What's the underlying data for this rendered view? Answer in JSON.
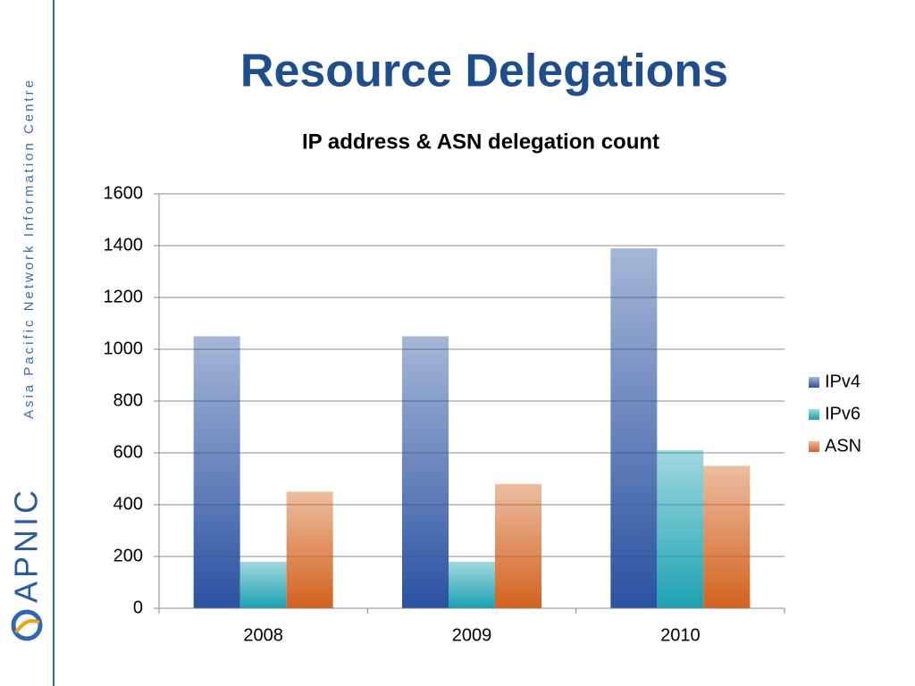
{
  "slide": {
    "title": "Resource Delegations"
  },
  "sidebar": {
    "tagline": "Asia Pacific Network Information Centre",
    "logo_text": "APNIC"
  },
  "chart_data": {
    "type": "bar",
    "title": "IP address & ASN delegation count",
    "categories": [
      "2008",
      "2009",
      "2010"
    ],
    "series": [
      {
        "name": "IPv4",
        "color": "#2a52a0",
        "values": [
          1050,
          1050,
          1390
        ]
      },
      {
        "name": "IPv6",
        "color": "#1ca2b2",
        "values": [
          180,
          180,
          610
        ]
      },
      {
        "name": "ASN",
        "color": "#d2621e",
        "values": [
          450,
          480,
          550
        ]
      }
    ],
    "ylim": [
      0,
      1600
    ],
    "yticks": [
      0,
      200,
      400,
      600,
      800,
      1000,
      1200,
      1400,
      1600
    ],
    "grid": true,
    "legend": "right"
  }
}
